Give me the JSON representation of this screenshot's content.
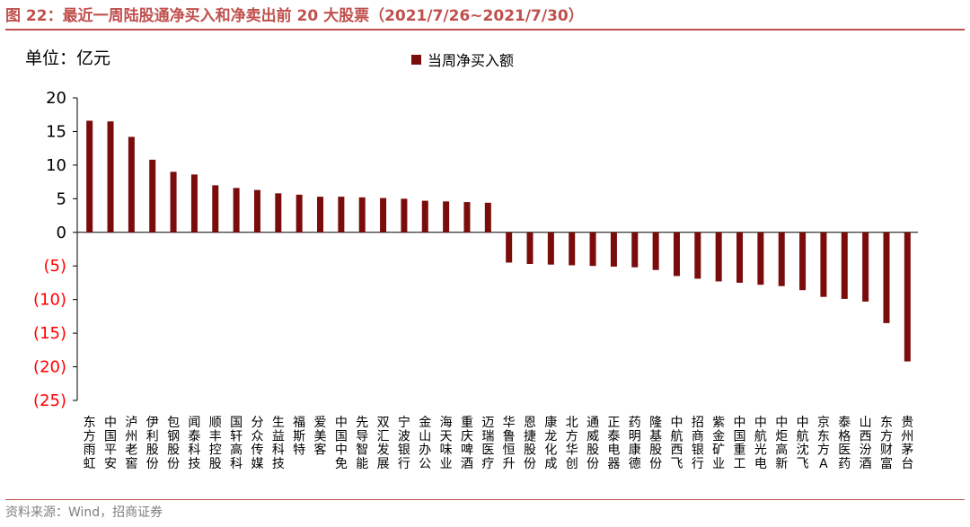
{
  "title": "图 22：最近一周陆股通净买入和净卖出前 20 大股票（2021/7/26~2021/7/30）",
  "source": "资料来源：Wind，招商证券",
  "chart_data": {
    "type": "bar",
    "unit_label": "单位：亿元",
    "ylim": [
      -25,
      20
    ],
    "yticks": [
      20,
      15,
      10,
      5,
      0,
      -5,
      -10,
      -15,
      -20,
      -25
    ],
    "ytick_labels": [
      "20",
      "15",
      "10",
      "5",
      "0",
      "(5)",
      "(10)",
      "(15)",
      "(20)",
      "(25)"
    ],
    "negative_tick_color": "#ff0000",
    "bar_color": "#7b0c0c",
    "legend_position": "top-center",
    "grid": false,
    "categories": [
      "东方雨虹",
      "中国平安",
      "泸州老窖",
      "伊利股份",
      "包钢股份",
      "闻泰科技",
      "顺丰控股",
      "国轩高科",
      "分众传媒",
      "生益科技",
      "福斯特",
      "爱美客",
      "中国中免",
      "先导智能",
      "双汇发展",
      "宁波银行",
      "金山办公",
      "海天味业",
      "重庆啤酒",
      "迈瑞医疗",
      "华鲁恒升",
      "恩捷股份",
      "康龙化成",
      "北方华创",
      "通威股份",
      "正泰电器",
      "药明康德",
      "隆基股份",
      "中航西飞",
      "招商银行",
      "紫金矿业",
      "中国重工",
      "中航光电",
      "中炬高新",
      "中航沈飞",
      "京东方A",
      "泰格医药",
      "山西汾酒",
      "东方财富",
      "贵州茅台"
    ],
    "series": [
      {
        "name": "当周净买入额",
        "values": [
          16.6,
          16.5,
          14.2,
          10.8,
          9.0,
          8.6,
          7.0,
          6.6,
          6.3,
          5.8,
          5.6,
          5.3,
          5.3,
          5.2,
          5.1,
          5.0,
          4.7,
          4.6,
          4.5,
          4.4,
          -4.5,
          -4.7,
          -4.8,
          -4.9,
          -5.0,
          -5.1,
          -5.2,
          -5.6,
          -6.5,
          -6.9,
          -7.3,
          -7.5,
          -7.8,
          -8.0,
          -8.6,
          -9.6,
          -9.9,
          -10.3,
          -13.5,
          -19.2
        ]
      }
    ]
  }
}
